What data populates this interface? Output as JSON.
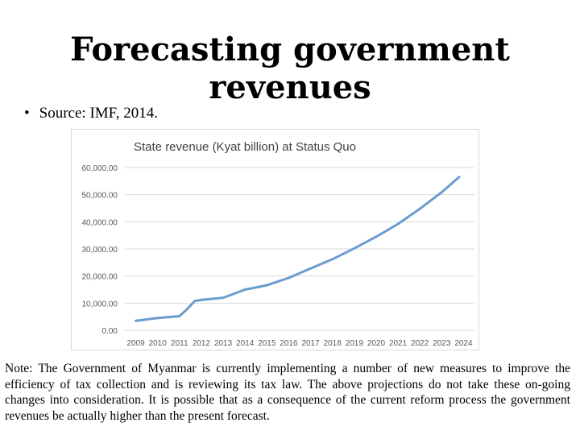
{
  "slide": {
    "title": "Forecasting government revenues",
    "source_bullet": "•",
    "source_text": "Source: IMF, 2014.",
    "note": "Note: The Government of Myanmar is currently implementing a number of new measures to improve the efficiency of tax collection and is reviewing its tax law. The above projections do not take these on-going changes into consideration. It is possible that as a consequence of the current reform process the government revenues be actually higher than the present forecast."
  },
  "colors": {
    "line": "#6a9cd0",
    "grid": "#d9d9d9",
    "axis_text": "#595959",
    "title_text": "#404040"
  },
  "chart_data": {
    "type": "line",
    "title": "State revenue (Kyat billion) at Status Quo",
    "xlabel": "",
    "ylabel": "",
    "categories": [
      "2009",
      "2010",
      "2011",
      "2012",
      "2013",
      "2014",
      "2015",
      "2016",
      "2017",
      "2018",
      "2019",
      "2020",
      "2021",
      "2022",
      "2023",
      "2024"
    ],
    "y_ticks": [
      "0.00",
      "10,000.00",
      "20,000.00",
      "30,000.00",
      "40,000.00",
      "50,000.00",
      "60,000.00"
    ],
    "ylim": [
      0,
      60000
    ],
    "grid": true,
    "series": [
      {
        "name": "State revenue",
        "points": [
          {
            "x": 2009.0,
            "y": 3500
          },
          {
            "x": 2010.0,
            "y": 4500
          },
          {
            "x": 2011.0,
            "y": 5200
          },
          {
            "x": 2011.35,
            "y": 7800
          },
          {
            "x": 2011.7,
            "y": 10800
          },
          {
            "x": 2012.0,
            "y": 11200
          },
          {
            "x": 2013.0,
            "y": 12000
          },
          {
            "x": 2014.0,
            "y": 15000
          },
          {
            "x": 2015.0,
            "y": 16600
          },
          {
            "x": 2016.0,
            "y": 19300
          },
          {
            "x": 2017.0,
            "y": 22800
          },
          {
            "x": 2018.0,
            "y": 26200
          },
          {
            "x": 2019.0,
            "y": 30200
          },
          {
            "x": 2020.0,
            "y": 34500
          },
          {
            "x": 2021.0,
            "y": 39200
          },
          {
            "x": 2022.0,
            "y": 44800
          },
          {
            "x": 2023.0,
            "y": 50900
          },
          {
            "x": 2023.8,
            "y": 56500
          }
        ]
      }
    ]
  }
}
